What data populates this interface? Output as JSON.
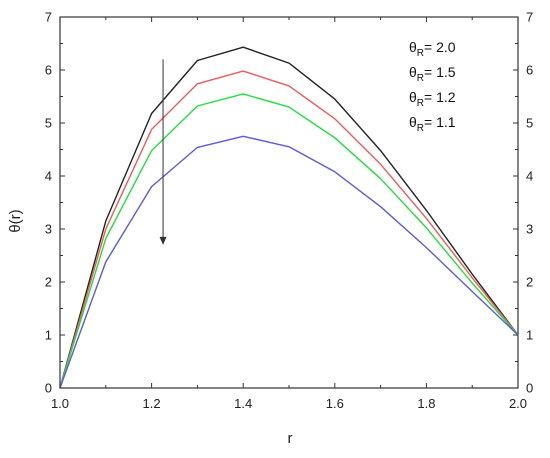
{
  "chart_data": {
    "type": "line",
    "xlabel": "r",
    "ylabel": "θ(r)",
    "xlim": [
      1.0,
      2.0
    ],
    "ylim": [
      0,
      7
    ],
    "x_ticks": [
      "1.0",
      "1.2",
      "1.4",
      "1.6",
      "1.8",
      "2.0"
    ],
    "y_ticks": [
      "0",
      "1",
      "2",
      "3",
      "4",
      "5",
      "6",
      "7"
    ],
    "x": [
      1.0,
      1.1,
      1.2,
      1.3,
      1.4,
      1.5,
      1.6,
      1.7,
      1.8,
      1.9,
      2.0
    ],
    "series": [
      {
        "name": "θR= 2.0",
        "legend_main": "θ",
        "legend_sub": "R",
        "legend_value": "= 2.0",
        "color": "#222222",
        "values": [
          0,
          3.15,
          5.18,
          6.18,
          6.43,
          6.13,
          5.45,
          4.48,
          3.35,
          2.15,
          1.0
        ]
      },
      {
        "name": "θR= 1.5",
        "legend_main": "θ",
        "legend_sub": "R",
        "legend_value": "= 1.5",
        "color": "#f05a5a",
        "values": [
          0,
          3.0,
          4.88,
          5.74,
          5.98,
          5.7,
          5.08,
          4.22,
          3.2,
          2.08,
          1.0
        ]
      },
      {
        "name": "θR= 1.2",
        "legend_main": "θ",
        "legend_sub": "R",
        "legend_value": "= 1.2",
        "color": "#22e03a",
        "values": [
          0,
          2.82,
          4.48,
          5.32,
          5.55,
          5.3,
          4.72,
          3.95,
          3.02,
          1.98,
          1.0
        ]
      },
      {
        "name": "θR= 1.1",
        "legend_main": "θ",
        "legend_sub": "R",
        "legend_value": "= 1.1",
        "color": "#5a5ae6",
        "values": [
          0,
          2.38,
          3.8,
          4.54,
          4.75,
          4.55,
          4.08,
          3.42,
          2.65,
          1.82,
          1.0
        ]
      }
    ],
    "arrow": {
      "x": 1.225,
      "y_start": 6.2,
      "y_end": 2.7,
      "color": "#333333"
    },
    "legend_position": "top-right",
    "grid": false,
    "mirrored_axes": true
  }
}
